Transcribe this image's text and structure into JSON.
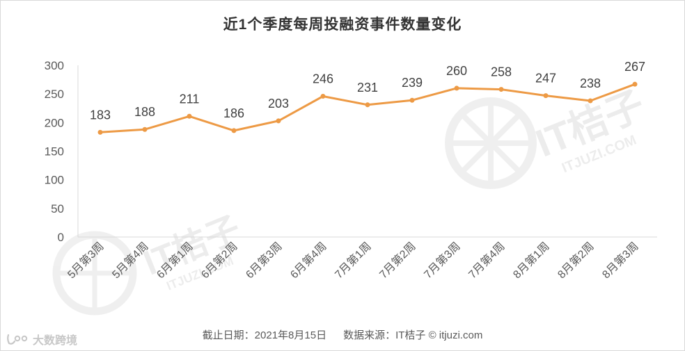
{
  "chart_data": {
    "type": "line",
    "title": "近1个季度每周投融资事件数量变化",
    "categories": [
      "5月第3周",
      "5月第4周",
      "6月第1周",
      "6月第2周",
      "6月第3周",
      "6月第4周",
      "7月第1周",
      "7月第2周",
      "7月第3周",
      "7月第4周",
      "8月第1周",
      "8月第2周",
      "8月第3周"
    ],
    "series": [
      {
        "values": [
          183,
          188,
          211,
          186,
          203,
          246,
          231,
          239,
          260,
          258,
          247,
          238,
          267
        ]
      }
    ],
    "y_ticks": [
      0,
      50,
      100,
      150,
      200,
      250,
      300
    ],
    "ylim": [
      0,
      300
    ],
    "grid": false,
    "legend": "none",
    "line_color": "#ED9A45"
  },
  "footer": {
    "date_text": "截止日期：2021年8月15日",
    "source_text": "数据来源：IT桔子 © itjuzi.com"
  },
  "watermark": {
    "text": "IT桔子",
    "domain": "ITJUZI.COM"
  },
  "brand": {
    "logo_icon": "brand-logo-icon",
    "text": "大数跨境"
  }
}
